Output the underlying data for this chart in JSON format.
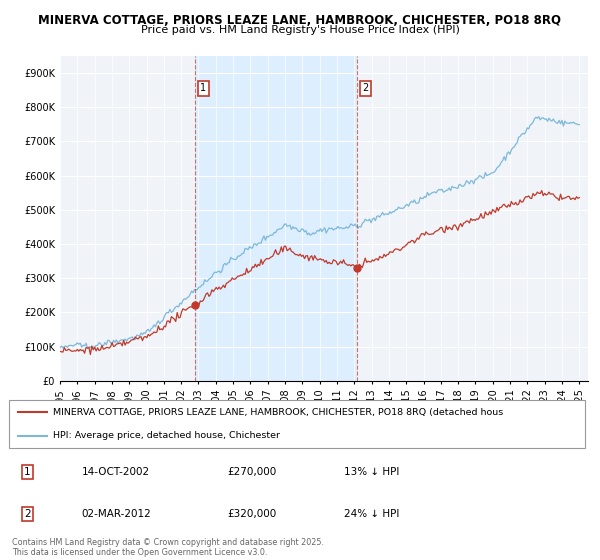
{
  "title1": "MINERVA COTTAGE, PRIORS LEAZE LANE, HAMBROOK, CHICHESTER, PO18 8RQ",
  "title2": "Price paid vs. HM Land Registry's House Price Index (HPI)",
  "ylim": [
    0,
    950000
  ],
  "yticks": [
    0,
    100000,
    200000,
    300000,
    400000,
    500000,
    600000,
    700000,
    800000,
    900000
  ],
  "ytick_labels": [
    "£0",
    "£100K",
    "£200K",
    "£300K",
    "£400K",
    "£500K",
    "£600K",
    "£700K",
    "£800K",
    "£900K"
  ],
  "xlim_start": 1995,
  "xlim_end": 2025.5,
  "hpi_color": "#7db8d8",
  "price_color": "#c0392b",
  "highlight_color": "#ddeeff",
  "background_color": "#ffffff",
  "plot_bg_color": "#f0f4f8",
  "grid_color": "#cccccc",
  "sale1_date": 2002.79,
  "sale2_date": 2012.17,
  "legend_label_red": "MINERVA COTTAGE, PRIORS LEAZE LANE, HAMBROOK, CHICHESTER, PO18 8RQ (detached hous",
  "legend_label_blue": "HPI: Average price, detached house, Chichester",
  "table_row1": [
    "1",
    "14-OCT-2002",
    "£270,000",
    "13% ↓ HPI"
  ],
  "table_row2": [
    "2",
    "02-MAR-2012",
    "£320,000",
    "24% ↓ HPI"
  ],
  "footer": "Contains HM Land Registry data © Crown copyright and database right 2025.\nThis data is licensed under the Open Government Licence v3.0.",
  "title_fontsize": 8.5,
  "subtitle_fontsize": 8.0,
  "axis_fontsize": 7.0,
  "legend_fontsize": 7.5
}
